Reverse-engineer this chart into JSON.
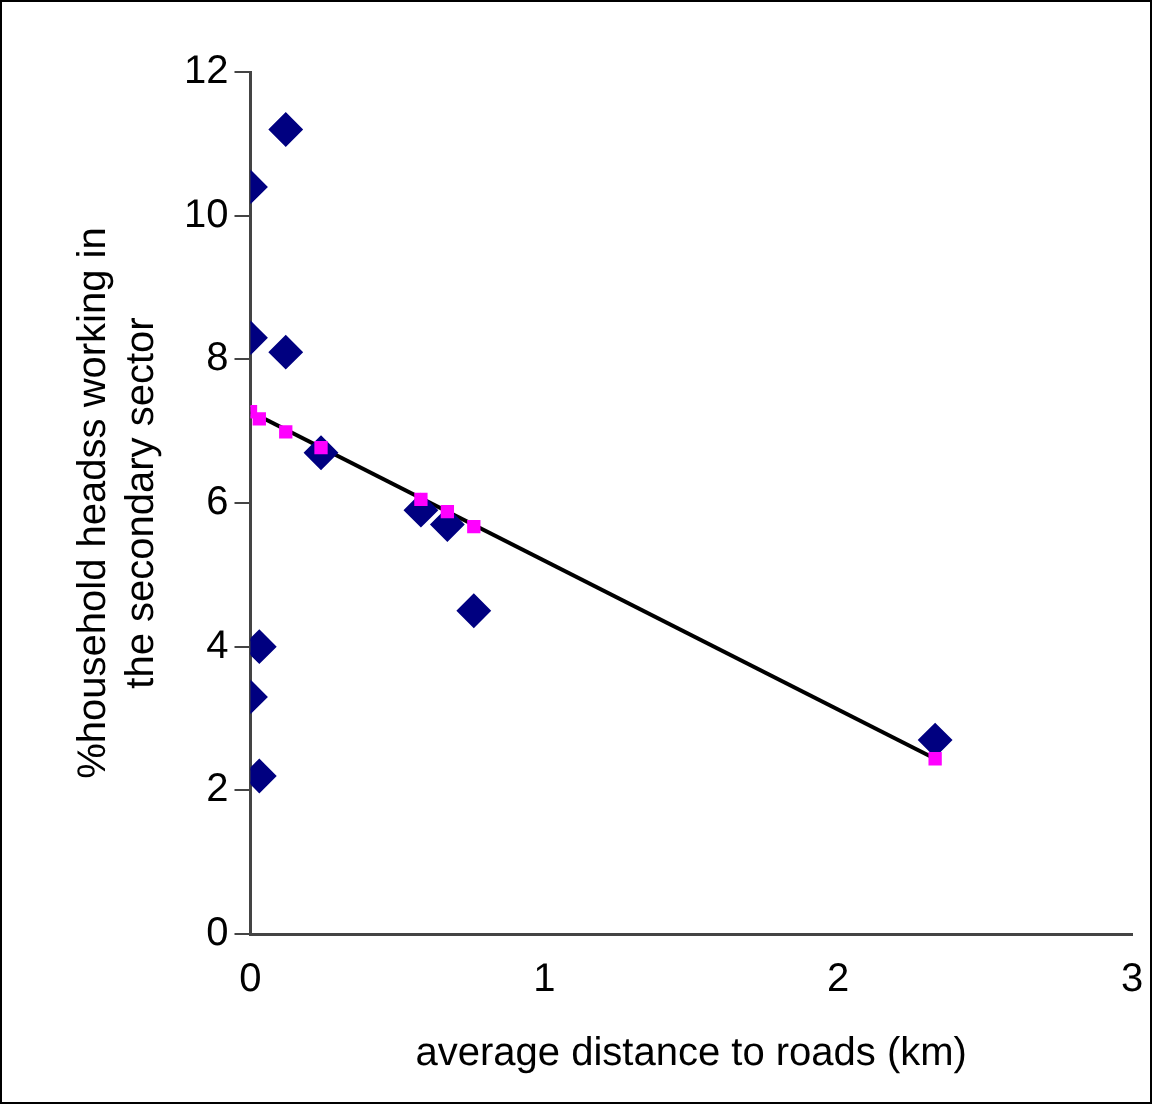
{
  "chart_data": {
    "type": "scatter",
    "xlabel": "average distance to roads (km)",
    "ylabel": "%household headss working in the secondary sector",
    "xlim": [
      0,
      3
    ],
    "xticks": [
      0,
      1,
      2,
      3
    ],
    "ylim": [
      0,
      12
    ],
    "yticks": [
      0,
      2,
      4,
      6,
      8,
      10,
      12
    ],
    "grid": false,
    "legend": false,
    "marker": "diamond",
    "series": [
      {
        "color": "#000080",
        "x": [
          0.12,
          0,
          0,
          0.12,
          0.24,
          0.58,
          0.67,
          0.76,
          0.03,
          0,
          0.03,
          2.33
        ],
        "values": [
          11.2,
          10.4,
          8.3,
          8.1,
          6.7,
          5.9,
          5.7,
          4.5,
          4.0,
          3.3,
          2.2,
          2.7
        ]
      },
      {
        "color": "#ff00ff",
        "marker": "square",
        "x": [
          0,
          0.03,
          0.12,
          0.24,
          0.58,
          0.67,
          0.76,
          2.33
        ],
        "values": [
          7.27,
          7.17,
          6.99,
          6.77,
          6.05,
          5.88,
          5.67,
          2.44
        ]
      },
      {
        "type": "line",
        "color": "#000000",
        "marker": "none",
        "x": [
          0,
          2.33
        ],
        "values": [
          7.27,
          2.44
        ]
      }
    ]
  }
}
